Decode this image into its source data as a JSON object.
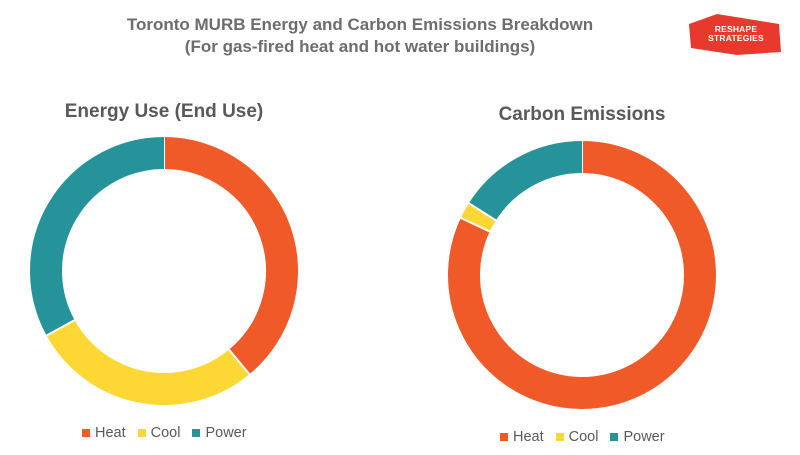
{
  "title_line1": "Toronto MURB Energy and Carbon Emissions Breakdown",
  "title_line2": "(For gas-fired heat and hot water buildings)",
  "logo": {
    "line1": "RESHAPE",
    "line2": "STRATEGIES",
    "color": "#e8392f"
  },
  "colors": {
    "Heat": "#f05a28",
    "Cool": "#fdd835",
    "Power": "#26939a"
  },
  "chart_data": [
    {
      "type": "pie",
      "title": "Energy Use (End Use)",
      "categories": [
        "Heat",
        "Cool",
        "Power"
      ],
      "values": [
        39,
        28,
        33
      ],
      "legend": "bottom"
    },
    {
      "type": "pie",
      "title": "Carbon Emissions",
      "categories": [
        "Heat",
        "Cool",
        "Power"
      ],
      "values": [
        82,
        2,
        16
      ],
      "legend": "bottom"
    }
  ]
}
